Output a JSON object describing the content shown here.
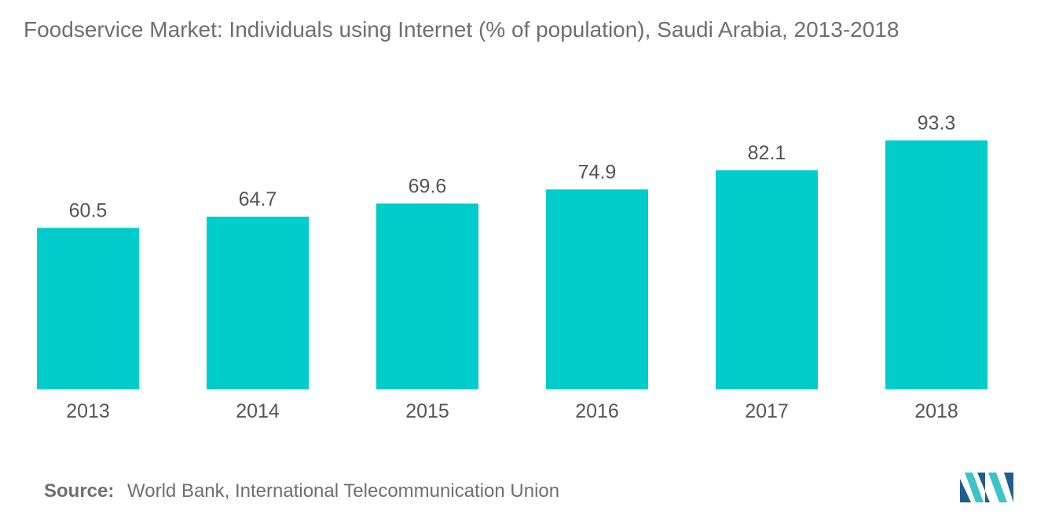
{
  "chart_data": {
    "type": "bar",
    "title": "Foodservice Market: Individuals using Internet (% of population), Saudi Arabia, 2013-2018",
    "categories": [
      "2013",
      "2014",
      "2015",
      "2016",
      "2017",
      "2018"
    ],
    "values": [
      60.5,
      64.7,
      69.6,
      74.9,
      82.1,
      93.3
    ],
    "xlabel": "",
    "ylabel": "",
    "ylim": [
      0,
      100
    ],
    "grid": false,
    "legend": "none",
    "bar_color": "#00cccc",
    "value_labels": [
      "60.5",
      "64.7",
      "69.6",
      "74.9",
      "82.1",
      "93.3"
    ]
  },
  "source": {
    "label": "Source:",
    "text": "World Bank, International Telecommunication Union"
  },
  "colors": {
    "text": "#6f6f6f",
    "bar": "#00cccc",
    "logo_dark": "#1f5f8b",
    "logo_light": "#3bc4c8"
  },
  "logo": {
    "icon": "mordor-intelligence-logo-icon"
  }
}
